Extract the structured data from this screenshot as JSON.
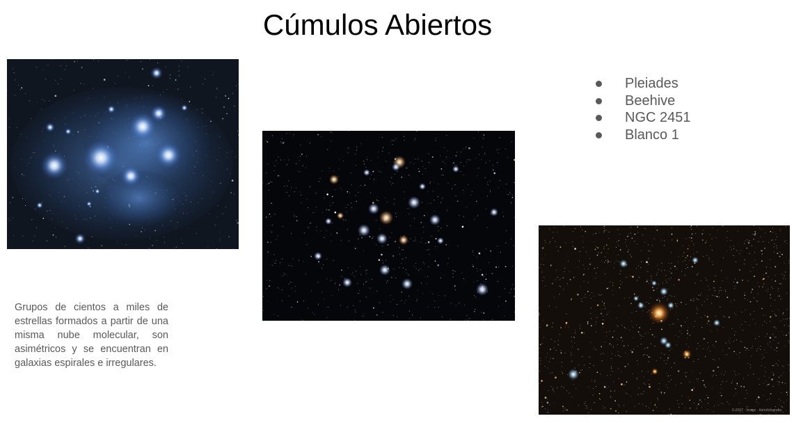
{
  "slide": {
    "title": "Cúmulos Abiertos",
    "description": "Grupos de cientos a miles de estrellas formados a partir de una misma nube molecular, son asimétricos y se encuentran en galaxias espirales e irregulares.",
    "clusters": [
      "Pleiades",
      "Beehive",
      "NGC 2451",
      "Blanco 1"
    ]
  },
  "images": {
    "pleiades": "pleiades-cluster-photo",
    "beehive": "beehive-cluster-photo",
    "ngc": "open-cluster-photo"
  },
  "colors": {
    "text_gray": "#595959",
    "title": "#000000",
    "space_dark": "#0a0d14",
    "nebula_blue": "#6fa8ff",
    "star_orange": "#ff9a3a"
  }
}
